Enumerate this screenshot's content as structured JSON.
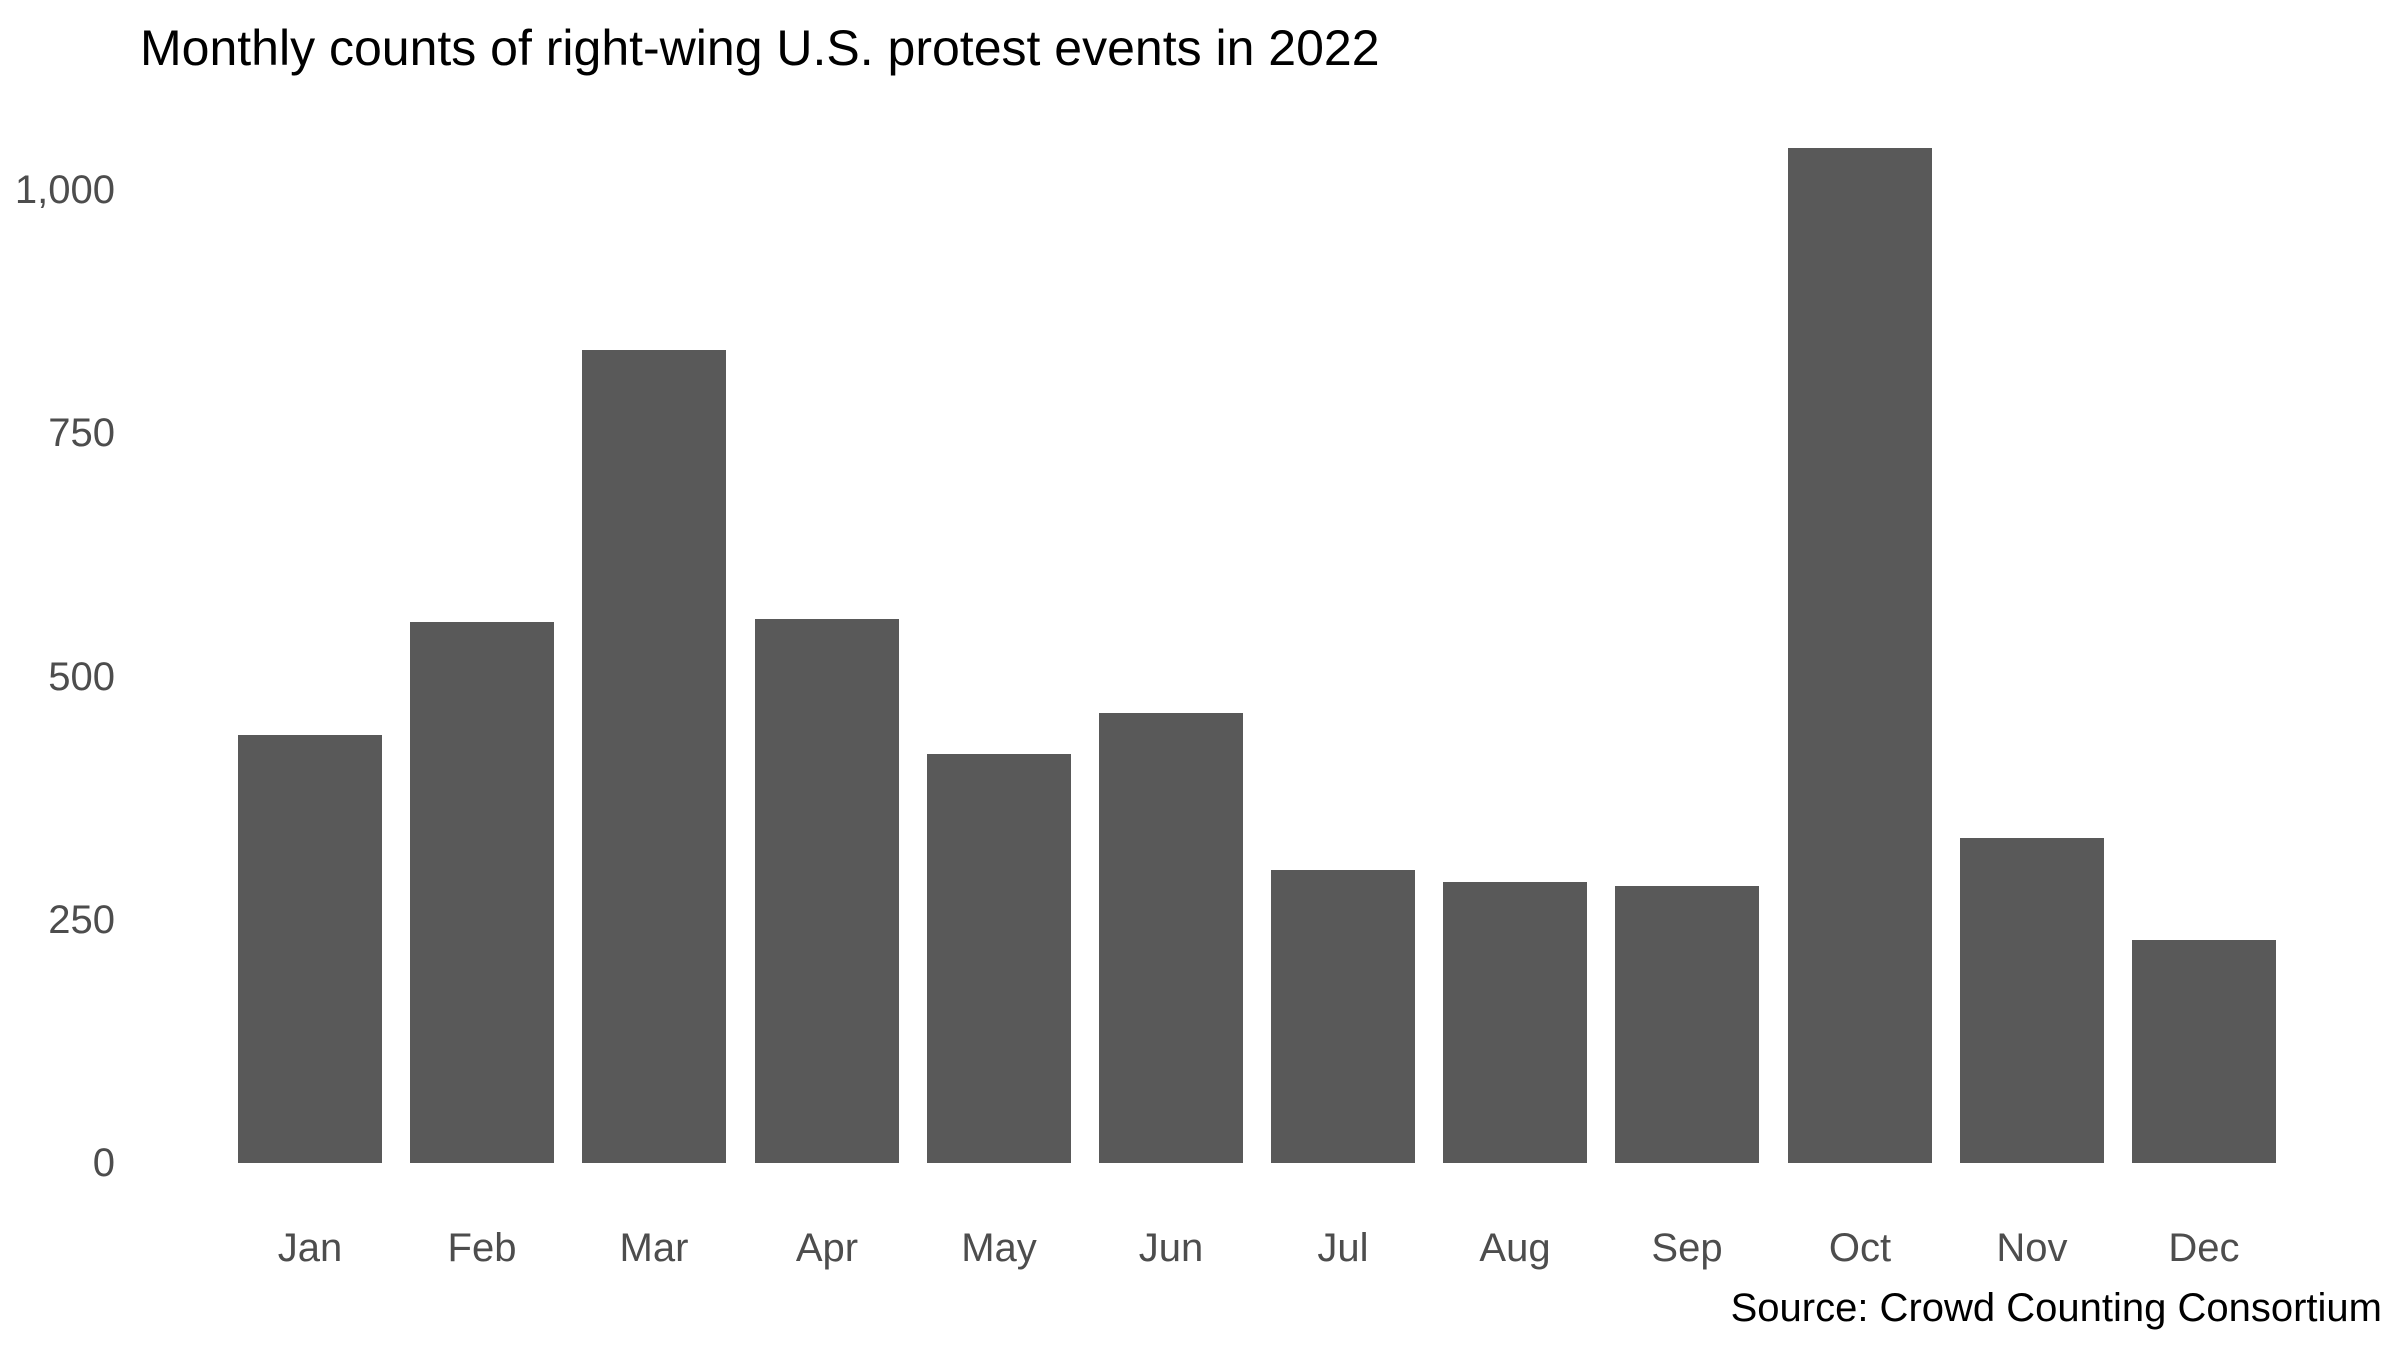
{
  "chart_data": {
    "type": "bar",
    "title": "Monthly counts of right-wing U.S. protest events in 2022",
    "categories": [
      "Jan",
      "Feb",
      "Mar",
      "Apr",
      "May",
      "Jun",
      "Jul",
      "Aug",
      "Sep",
      "Oct",
      "Nov",
      "Dec"
    ],
    "values": [
      440,
      556,
      836,
      559,
      420,
      462,
      301,
      289,
      285,
      1043,
      334,
      229
    ],
    "xlabel": "",
    "ylabel": "",
    "ylim": [
      0,
      1100
    ],
    "yticks": [
      0,
      250,
      500,
      750,
      1000
    ],
    "ytick_labels": [
      "0",
      "250",
      "500",
      "750",
      "1,000"
    ],
    "grid": false,
    "legend_position": "none",
    "source_note": "Source: Crowd Counting Consortium",
    "bar_color": "#595959",
    "axis_text_color": "#4d4d4d",
    "title_color": "#000000",
    "source_text_color": "#000000",
    "background_color": "#ffffff"
  }
}
